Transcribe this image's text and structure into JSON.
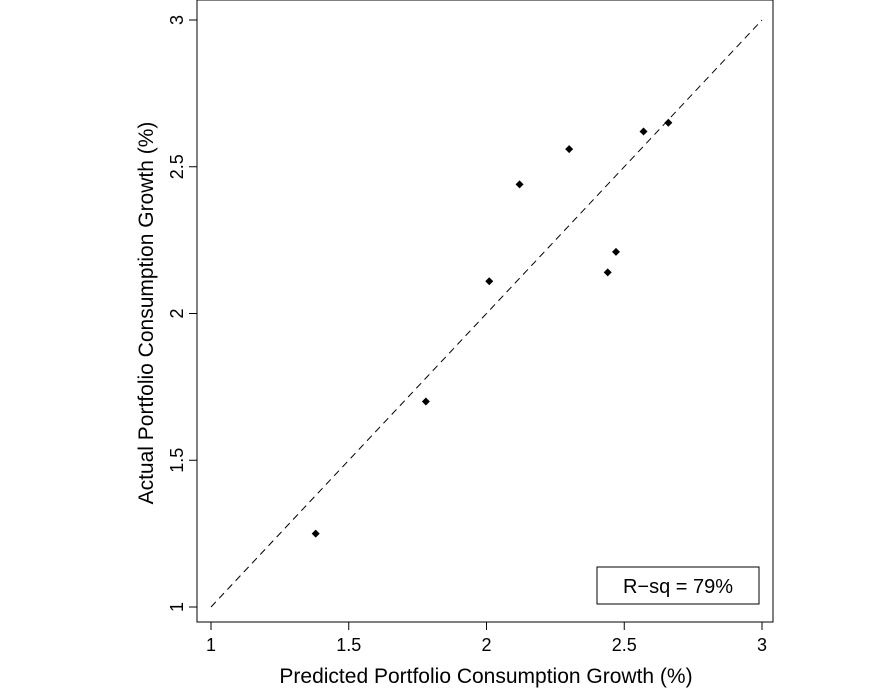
{
  "chart_data": {
    "type": "scatter",
    "title": "",
    "xlabel": "Predicted Portfolio Consumption Growth (%)",
    "ylabel": "Actual Portfolio Consumption Growth (%)",
    "xlim": [
      1,
      3
    ],
    "ylim": [
      1,
      3
    ],
    "xticks": [
      1,
      1.5,
      2,
      2.5,
      3
    ],
    "yticks": [
      1,
      1.5,
      2,
      2.5,
      3
    ],
    "xtick_labels": [
      "1",
      "1.5",
      "2",
      "2.5",
      "3"
    ],
    "ytick_labels": [
      "1",
      "1.5",
      "2",
      "2.5",
      "3"
    ],
    "grid": false,
    "reference_line": {
      "style": "dashed",
      "from": [
        1,
        1
      ],
      "to": [
        3,
        3
      ]
    },
    "points": [
      {
        "x": 1.38,
        "y": 1.25
      },
      {
        "x": 1.78,
        "y": 1.7
      },
      {
        "x": 2.01,
        "y": 2.11
      },
      {
        "x": 2.12,
        "y": 2.44
      },
      {
        "x": 2.3,
        "y": 2.56
      },
      {
        "x": 2.44,
        "y": 2.14
      },
      {
        "x": 2.47,
        "y": 2.21
      },
      {
        "x": 2.57,
        "y": 2.62
      },
      {
        "x": 2.66,
        "y": 2.65
      }
    ],
    "annotation": {
      "text": "R−sq =  79%",
      "placement": "bottom-right"
    }
  },
  "colors": {
    "marker": "#000000",
    "line": "#000000",
    "background": "#ffffff"
  }
}
